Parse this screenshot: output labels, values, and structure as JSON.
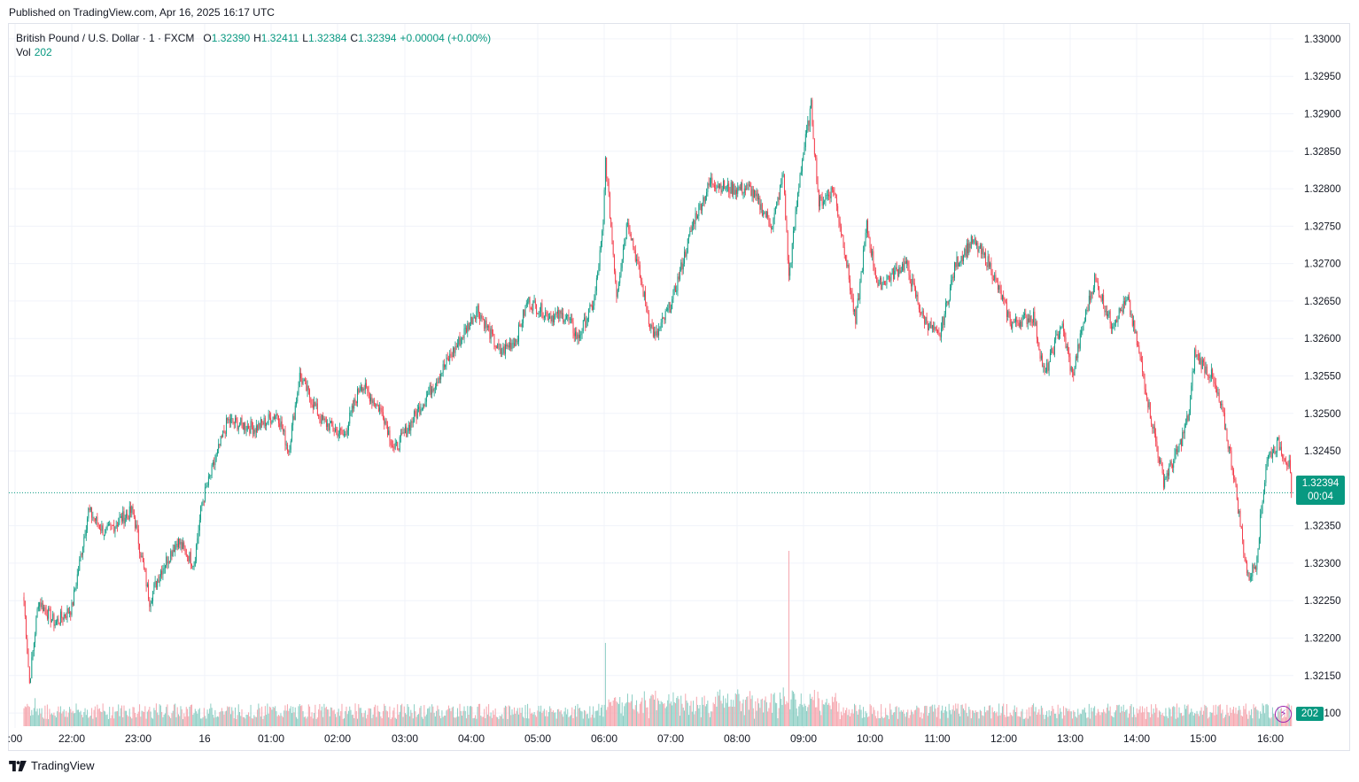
{
  "published": "Published on TradingView.com, Apr 16, 2025 16:17 UTC",
  "legend": {
    "symbol": "British Pound / U.S. Dollar · 1 · FXCM",
    "o_label": "O",
    "o_value": "1.32390",
    "h_label": "H",
    "h_value": "1.32411",
    "l_label": "L",
    "l_value": "1.32384",
    "c_label": "C",
    "c_value": "1.32394",
    "change": "+0.00004 (+0.00%)",
    "vol_label": "Vol",
    "vol_value": "202"
  },
  "price_tag": {
    "price": "1.32394",
    "countdown": "00:04"
  },
  "vol_tag": "202",
  "footer_brand": "TradingView",
  "colors": {
    "up": "#089981",
    "down": "#f23645",
    "up_vol": "#8dcec4",
    "down_vol": "#f5a6ae",
    "grid": "#f0f3fa"
  },
  "chart_data": {
    "type": "candlestick",
    "y_ticks": [
      "1.33000",
      "1.32950",
      "1.32900",
      "1.32850",
      "1.32800",
      "1.32750",
      "1.32700",
      "1.32650",
      "1.32600",
      "1.32550",
      "1.32500",
      "1.32450",
      "1.32350",
      "1.32300",
      "1.32250",
      "1.32200",
      "1.32150",
      "1.32100"
    ],
    "ylim": [
      1.3208,
      1.3302
    ],
    "x_ticks": [
      ":00",
      "22:00",
      "23:00",
      "16",
      "01:00",
      "02:00",
      "03:00",
      "04:00",
      "05:00",
      "06:00",
      "07:00",
      "08:00",
      "09:00",
      "10:00",
      "11:00",
      "12:00",
      "13:00",
      "14:00",
      "15:00",
      "16:00"
    ],
    "last_price": 1.32394,
    "close_anchors": [
      {
        "t": "21:17",
        "close": 1.3225
      },
      {
        "t": "21:22",
        "close": 1.3214
      },
      {
        "t": "21:30",
        "close": 1.3225
      },
      {
        "t": "21:45",
        "close": 1.3222
      },
      {
        "t": "22:00",
        "close": 1.3224
      },
      {
        "t": "22:15",
        "close": 1.3237
      },
      {
        "t": "22:30",
        "close": 1.3234
      },
      {
        "t": "22:45",
        "close": 1.3236
      },
      {
        "t": "22:55",
        "close": 1.3237
      },
      {
        "t": "23:05",
        "close": 1.3229
      },
      {
        "t": "23:10",
        "close": 1.3225
      },
      {
        "t": "23:20",
        "close": 1.3229
      },
      {
        "t": "23:35",
        "close": 1.3233
      },
      {
        "t": "23:50",
        "close": 1.323
      },
      {
        "t": "23:57",
        "close": 1.3238
      },
      {
        "t": "00:20",
        "close": 1.3249
      },
      {
        "t": "00:45",
        "close": 1.3248
      },
      {
        "t": "01:05",
        "close": 1.325
      },
      {
        "t": "01:15",
        "close": 1.3245
      },
      {
        "t": "01:25",
        "close": 1.3255
      },
      {
        "t": "01:45",
        "close": 1.3249
      },
      {
        "t": "02:05",
        "close": 1.3247
      },
      {
        "t": "02:20",
        "close": 1.3254
      },
      {
        "t": "02:40",
        "close": 1.325
      },
      {
        "t": "02:50",
        "close": 1.3245
      },
      {
        "t": "03:10",
        "close": 1.325
      },
      {
        "t": "03:30",
        "close": 1.3255
      },
      {
        "t": "03:50",
        "close": 1.326
      },
      {
        "t": "04:05",
        "close": 1.3264
      },
      {
        "t": "04:25",
        "close": 1.3258
      },
      {
        "t": "04:40",
        "close": 1.326
      },
      {
        "t": "04:50",
        "close": 1.3265
      },
      {
        "t": "05:10",
        "close": 1.3263
      },
      {
        "t": "05:25",
        "close": 1.3263
      },
      {
        "t": "05:35",
        "close": 1.326
      },
      {
        "t": "05:50",
        "close": 1.3265
      },
      {
        "t": "05:58",
        "close": 1.3275
      },
      {
        "t": "06:00",
        "close": 1.3284
      },
      {
        "t": "06:10",
        "close": 1.3266
      },
      {
        "t": "06:20",
        "close": 1.3276
      },
      {
        "t": "06:40",
        "close": 1.3262
      },
      {
        "t": "06:45",
        "close": 1.326
      },
      {
        "t": "07:00",
        "close": 1.3265
      },
      {
        "t": "07:20",
        "close": 1.3276
      },
      {
        "t": "07:35",
        "close": 1.3281
      },
      {
        "t": "07:50",
        "close": 1.328
      },
      {
        "t": "08:10",
        "close": 1.328
      },
      {
        "t": "08:30",
        "close": 1.3275
      },
      {
        "t": "08:40",
        "close": 1.3282
      },
      {
        "t": "08:45",
        "close": 1.3268
      },
      {
        "t": "08:55",
        "close": 1.3282
      },
      {
        "t": "09:05",
        "close": 1.3291
      },
      {
        "t": "09:12",
        "close": 1.3278
      },
      {
        "t": "09:25",
        "close": 1.328
      },
      {
        "t": "09:35",
        "close": 1.3272
      },
      {
        "t": "09:45",
        "close": 1.3262
      },
      {
        "t": "09:55",
        "close": 1.3275
      },
      {
        "t": "10:05",
        "close": 1.3267
      },
      {
        "t": "10:30",
        "close": 1.327
      },
      {
        "t": "10:45",
        "close": 1.3263
      },
      {
        "t": "11:00",
        "close": 1.326
      },
      {
        "t": "11:15",
        "close": 1.327
      },
      {
        "t": "11:30",
        "close": 1.3273
      },
      {
        "t": "11:45",
        "close": 1.327
      },
      {
        "t": "12:05",
        "close": 1.3262
      },
      {
        "t": "12:25",
        "close": 1.3263
      },
      {
        "t": "12:35",
        "close": 1.3255
      },
      {
        "t": "12:50",
        "close": 1.3262
      },
      {
        "t": "13:00",
        "close": 1.3255
      },
      {
        "t": "13:10",
        "close": 1.3262
      },
      {
        "t": "13:20",
        "close": 1.3268
      },
      {
        "t": "13:35",
        "close": 1.3262
      },
      {
        "t": "13:50",
        "close": 1.3265
      },
      {
        "t": "14:00",
        "close": 1.3258
      },
      {
        "t": "14:10",
        "close": 1.325
      },
      {
        "t": "14:22",
        "close": 1.3241
      },
      {
        "t": "14:35",
        "close": 1.3245
      },
      {
        "t": "14:45",
        "close": 1.325
      },
      {
        "t": "14:50",
        "close": 1.3258
      },
      {
        "t": "15:05",
        "close": 1.3255
      },
      {
        "t": "15:15",
        "close": 1.325
      },
      {
        "t": "15:25",
        "close": 1.3242
      },
      {
        "t": "15:33",
        "close": 1.3233
      },
      {
        "t": "15:38",
        "close": 1.3228
      },
      {
        "t": "15:45",
        "close": 1.323
      },
      {
        "t": "15:55",
        "close": 1.3244
      },
      {
        "t": "16:05",
        "close": 1.3246
      },
      {
        "t": "16:15",
        "close": 1.3243
      },
      {
        "t": "16:17",
        "close": 1.32394
      }
    ],
    "volume_max_label": "202"
  }
}
